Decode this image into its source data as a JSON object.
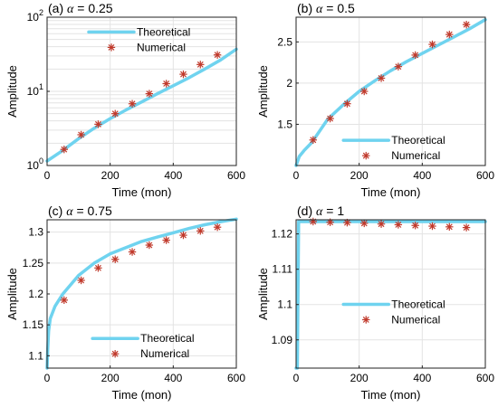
{
  "colors": {
    "theoretical": "#6fd3ef",
    "numerical": "#c0392b",
    "numerical_alt": "#2f7d32"
  },
  "legend": {
    "theoretical": "Theoretical",
    "numerical": "Numerical"
  },
  "chart_data": [
    {
      "id": "a",
      "type": "line",
      "title_prefix": "(a) ",
      "title_alpha": "α",
      "title_suffix": " = 0.25",
      "xlabel": "Time (mon)",
      "ylabel": "Amplitude",
      "xlim": [
        0,
        600
      ],
      "ylim": [
        1,
        100
      ],
      "yscale": "log",
      "xticks": [
        0,
        200,
        400,
        600
      ],
      "yticks": [
        {
          "value": 1,
          "base": "10",
          "exp": "0"
        },
        {
          "value": 10,
          "base": "10",
          "exp": "1"
        },
        {
          "value": 100,
          "base": "10",
          "exp": "2"
        }
      ],
      "grid": true,
      "legend_position": "top-left",
      "series": [
        {
          "name": "Theoretical",
          "style": "line",
          "x": [
            0,
            50,
            100,
            150,
            200,
            250,
            300,
            350,
            400,
            450,
            500,
            550,
            600
          ],
          "y": [
            1.15,
            1.6,
            2.3,
            3.2,
            4.3,
            5.6,
            7.2,
            9.3,
            11.9,
            15.3,
            20.0,
            26.5,
            37.0
          ]
        },
        {
          "name": "Numerical",
          "style": "marker",
          "x": [
            54,
            108,
            162,
            216,
            270,
            324,
            378,
            432,
            486,
            540
          ],
          "y": [
            1.65,
            2.6,
            3.6,
            5.0,
            6.8,
            9.3,
            12.7,
            17.0,
            23.0,
            31.0
          ]
        }
      ]
    },
    {
      "id": "b",
      "type": "line",
      "title_prefix": "(b) ",
      "title_alpha": "α",
      "title_suffix": " = 0.5",
      "xlabel": "Time (mon)",
      "ylabel": "Amplitude",
      "xlim": [
        0,
        600
      ],
      "ylim": [
        1,
        2.8
      ],
      "yscale": "linear",
      "xticks": [
        0,
        200,
        400,
        600
      ],
      "yticks": [
        {
          "value": 1.5,
          "label": "1.5"
        },
        {
          "value": 2,
          "label": "2"
        },
        {
          "value": 2.5,
          "label": "2.5"
        }
      ],
      "grid": true,
      "legend_position": "bottom-right",
      "series": [
        {
          "name": "Theoretical",
          "style": "line",
          "x": [
            0,
            10,
            25,
            50,
            100,
            150,
            200,
            250,
            300,
            350,
            400,
            450,
            500,
            550,
            600
          ],
          "y": [
            1.0,
            1.11,
            1.18,
            1.28,
            1.56,
            1.74,
            1.9,
            2.03,
            2.15,
            2.26,
            2.36,
            2.46,
            2.56,
            2.66,
            2.77
          ]
        },
        {
          "name": "Numerical",
          "style": "marker",
          "x": [
            54,
            108,
            162,
            216,
            270,
            324,
            378,
            432,
            486,
            540
          ],
          "y": [
            1.31,
            1.57,
            1.75,
            1.9,
            2.06,
            2.2,
            2.34,
            2.47,
            2.59,
            2.71
          ]
        }
      ]
    },
    {
      "id": "c",
      "type": "line",
      "title_prefix": "(c) ",
      "title_alpha": "α",
      "title_suffix": " = 0.75",
      "xlabel": "Time (mon)",
      "ylabel": "Amplitude",
      "xlim": [
        0,
        600
      ],
      "ylim": [
        1.08,
        1.32
      ],
      "yscale": "linear",
      "xticks": [
        0,
        200,
        400,
        600
      ],
      "yticks": [
        {
          "value": 1.1,
          "label": "1.1"
        },
        {
          "value": 1.15,
          "label": "1.15"
        },
        {
          "value": 1.2,
          "label": "1.2"
        },
        {
          "value": 1.25,
          "label": "1.25"
        },
        {
          "value": 1.3,
          "label": "1.3"
        }
      ],
      "grid": true,
      "legend_position": "bottom-center",
      "series": [
        {
          "name": "Theoretical",
          "style": "line",
          "x": [
            0,
            2,
            5,
            10,
            25,
            50,
            100,
            150,
            200,
            250,
            300,
            350,
            400,
            450,
            500,
            550,
            600
          ],
          "y": [
            1.08,
            1.11,
            1.14,
            1.16,
            1.18,
            1.2,
            1.23,
            1.25,
            1.265,
            1.275,
            1.285,
            1.292,
            1.299,
            1.306,
            1.312,
            1.317,
            1.321
          ]
        },
        {
          "name": "Numerical",
          "style": "marker",
          "x": [
            54,
            108,
            162,
            216,
            270,
            324,
            378,
            432,
            486,
            540
          ],
          "y": [
            1.19,
            1.222,
            1.242,
            1.256,
            1.268,
            1.279,
            1.287,
            1.295,
            1.302,
            1.308
          ]
        }
      ]
    },
    {
      "id": "d",
      "type": "line",
      "title_prefix": "(d) ",
      "title_alpha": "α",
      "title_suffix": " = 1",
      "xlabel": "Time (mon)",
      "ylabel": "Amplitude",
      "xlim": [
        0,
        600
      ],
      "ylim": [
        1.082,
        1.124
      ],
      "yscale": "linear",
      "xticks": [
        0,
        200,
        400,
        600
      ],
      "yticks": [
        {
          "value": 1.09,
          "label": "1.09"
        },
        {
          "value": 1.1,
          "label": "1.1"
        },
        {
          "value": 1.11,
          "label": "1.11"
        },
        {
          "value": 1.12,
          "label": "1.12"
        }
      ],
      "grid": true,
      "legend_position": "center",
      "series": [
        {
          "name": "Theoretical",
          "style": "line",
          "x": [
            0,
            4,
            8,
            20,
            100,
            200,
            300,
            400,
            500,
            600
          ],
          "y": [
            1.082,
            1.082,
            1.1235,
            1.1235,
            1.1235,
            1.1235,
            1.1235,
            1.1235,
            1.1235,
            1.1235
          ]
        },
        {
          "name": "Numerical",
          "style": "marker",
          "x": [
            54,
            108,
            162,
            216,
            270,
            324,
            378,
            432,
            486,
            540
          ],
          "y": [
            1.1235,
            1.1233,
            1.1232,
            1.123,
            1.1228,
            1.1226,
            1.1224,
            1.1222,
            1.122,
            1.1218
          ]
        }
      ]
    }
  ]
}
